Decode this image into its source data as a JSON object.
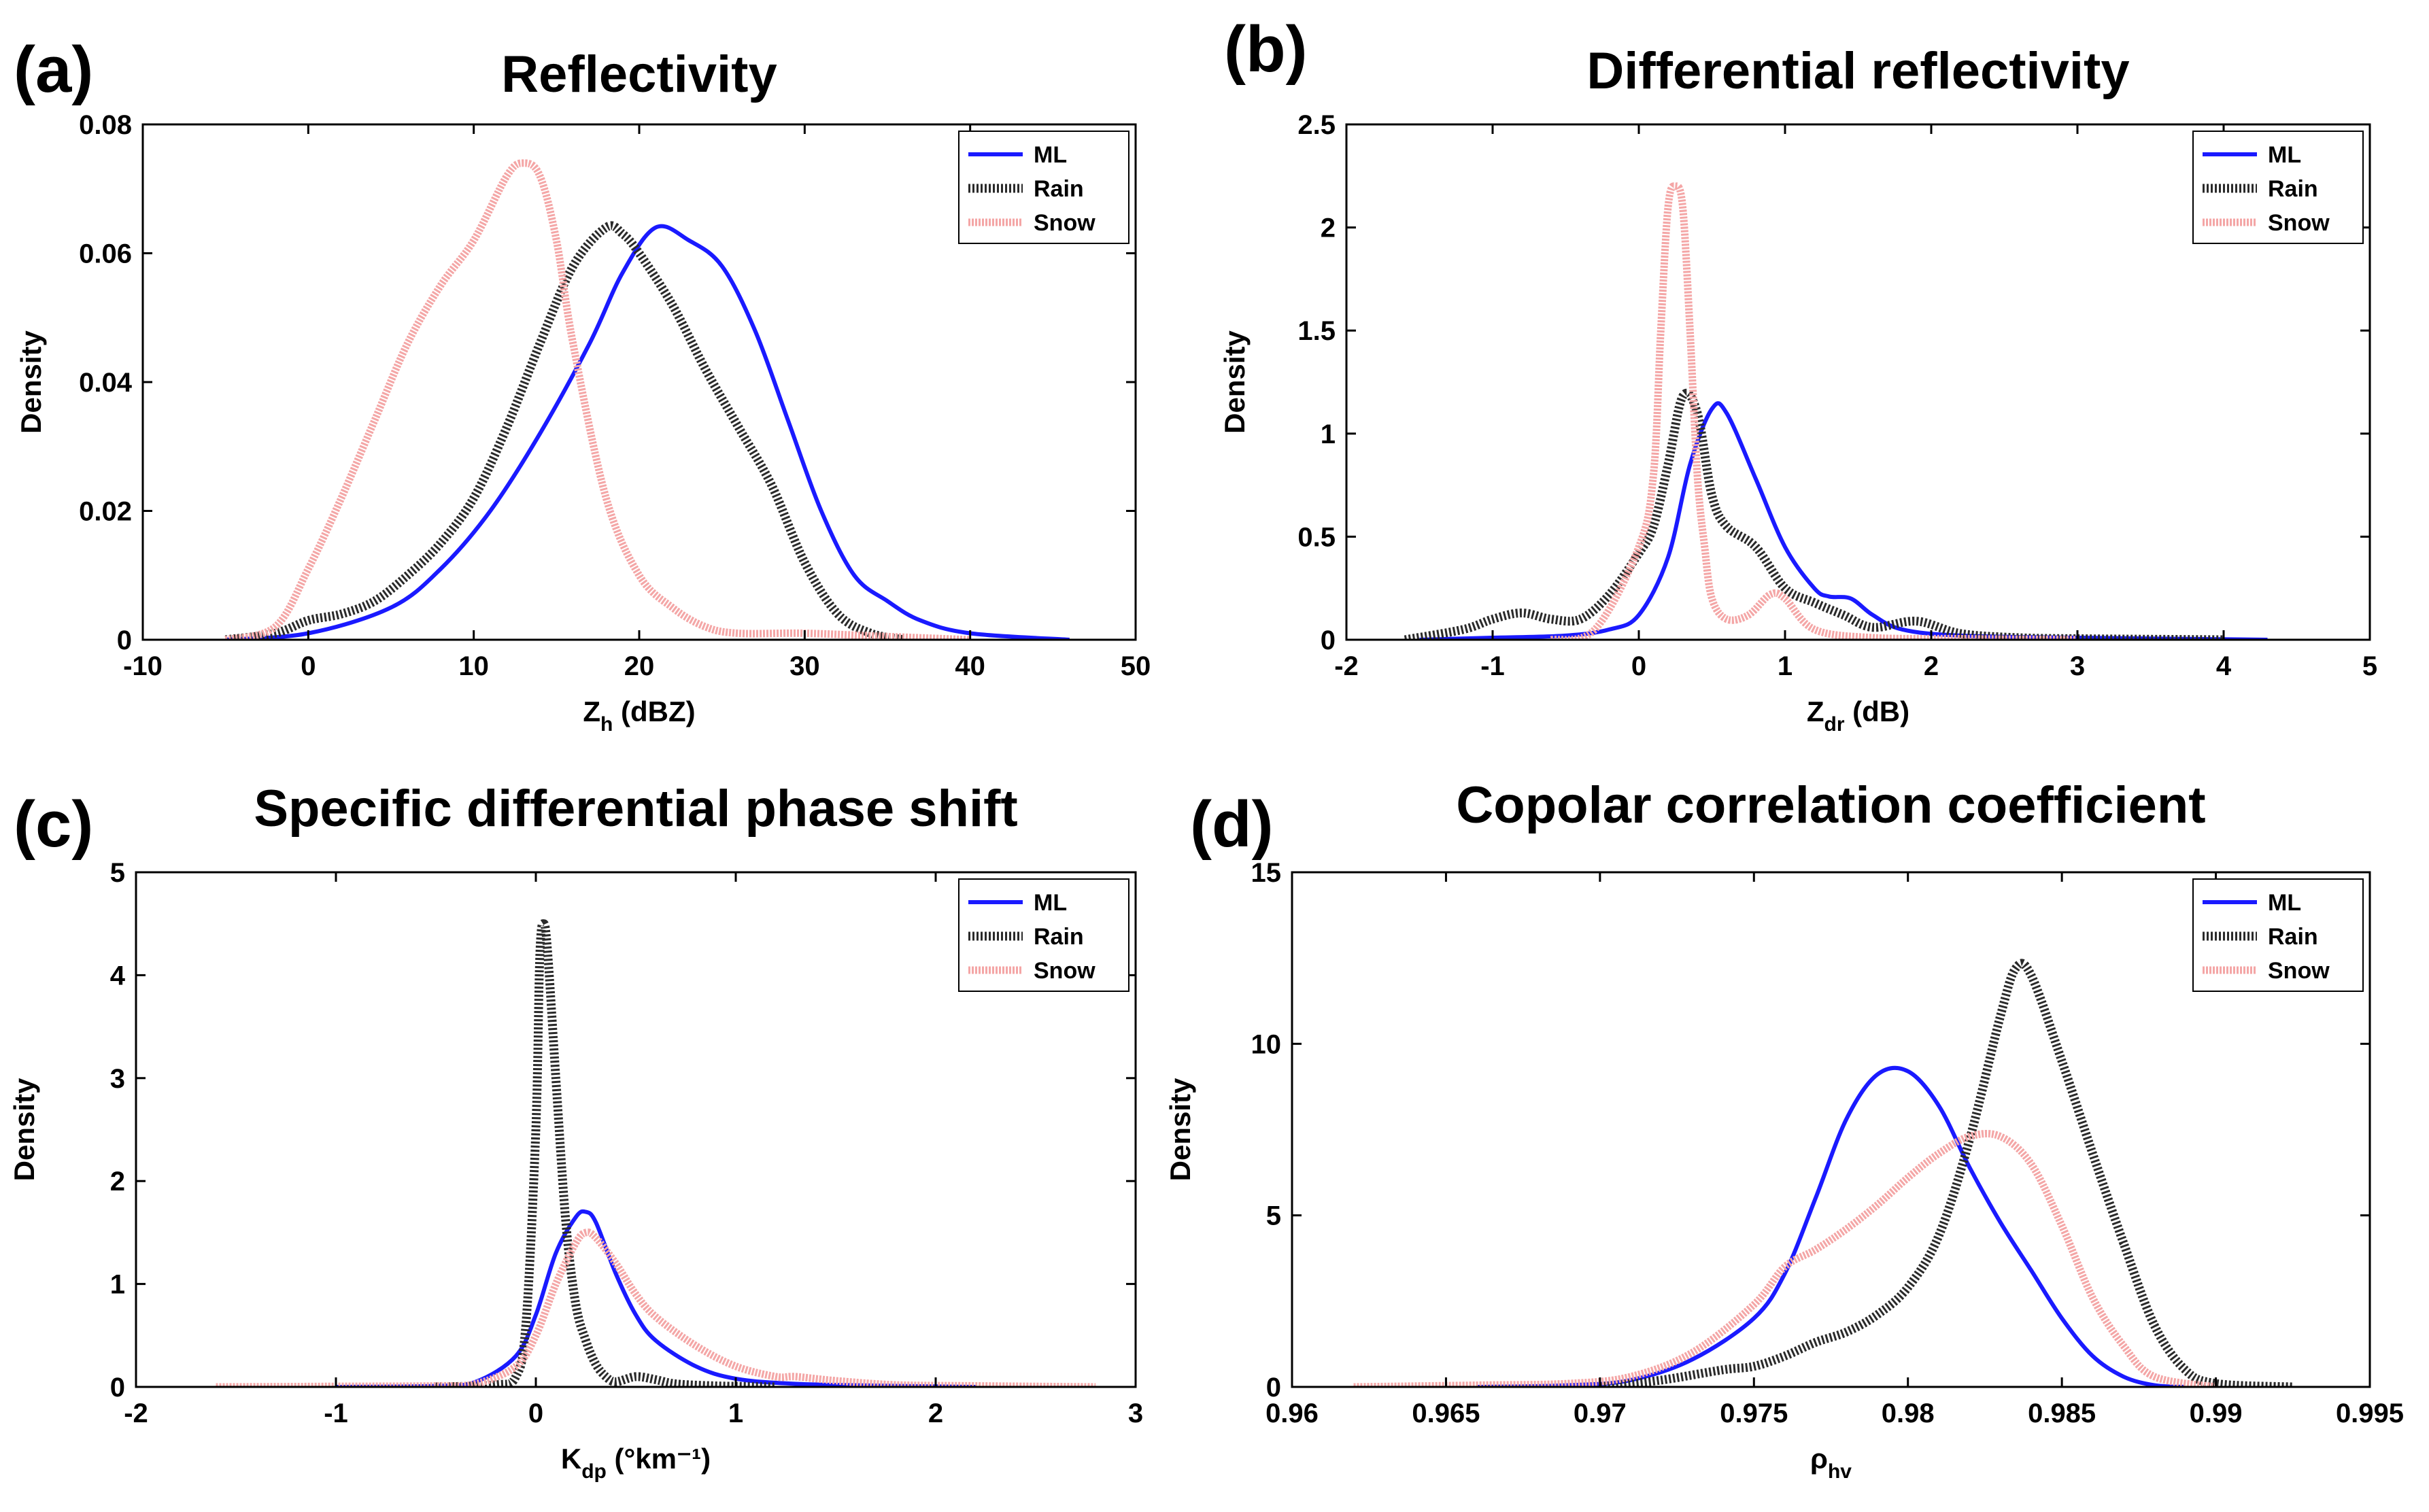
{
  "colors": {
    "ML": "#1a1aff",
    "Rain": "#2a2a2a",
    "Snow": "#f4a6a6",
    "axis": "#000000"
  },
  "chart_data": [
    {
      "type": "line",
      "letter": "(a)",
      "title": "Reflectivity",
      "xlabel": {
        "main": "Z",
        "sub": "h",
        "sup": "",
        "after": " (dBZ)"
      },
      "ylabel": "Density",
      "xlim": [
        -10,
        50
      ],
      "ylim": [
        0,
        0.08
      ],
      "xticks": [
        -10,
        0,
        10,
        20,
        30,
        40,
        50
      ],
      "xtick_labels": [
        "-10",
        "0",
        "10",
        "20",
        "30",
        "40",
        "50"
      ],
      "yticks": [
        0,
        0.02,
        0.04,
        0.06,
        0.08
      ],
      "ytick_labels": [
        "0",
        "0.02",
        "0.04",
        "0.06",
        "0.08"
      ],
      "legend": [
        "ML",
        "Rain",
        "Snow"
      ],
      "series": [
        {
          "name": "ML",
          "x": [
            -5,
            0,
            5,
            8,
            11,
            14,
            17,
            19,
            21,
            23,
            25,
            27,
            29,
            31,
            33,
            35,
            37,
            40,
            46
          ],
          "y": [
            0,
            0.001,
            0.005,
            0.011,
            0.02,
            0.032,
            0.046,
            0.057,
            0.064,
            0.062,
            0.058,
            0.048,
            0.034,
            0.02,
            0.01,
            0.006,
            0.003,
            0.001,
            0
          ]
        },
        {
          "name": "Rain",
          "x": [
            -5,
            -2,
            0,
            2,
            4,
            6,
            8,
            10,
            12,
            14,
            16,
            18,
            19,
            20,
            22,
            24,
            26,
            28,
            30,
            32,
            34,
            36
          ],
          "y": [
            0,
            0.001,
            0.003,
            0.004,
            0.006,
            0.01,
            0.015,
            0.022,
            0.033,
            0.046,
            0.058,
            0.064,
            0.063,
            0.06,
            0.052,
            0.042,
            0.033,
            0.024,
            0.012,
            0.004,
            0.001,
            0
          ]
        },
        {
          "name": "Snow",
          "x": [
            -5,
            -2,
            0,
            2,
            4,
            6,
            8,
            10,
            12,
            13,
            14,
            15,
            16,
            18,
            20,
            22,
            24,
            26,
            30,
            35,
            40
          ],
          "y": [
            0,
            0.002,
            0.011,
            0.022,
            0.034,
            0.046,
            0.055,
            0.062,
            0.072,
            0.074,
            0.072,
            0.062,
            0.046,
            0.022,
            0.01,
            0.005,
            0.002,
            0.001,
            0.001,
            0.0005,
            0
          ]
        }
      ]
    },
    {
      "type": "line",
      "letter": "(b)",
      "title": "Differential reflectivity",
      "xlabel": {
        "main": "Z",
        "sub": "dr",
        "sup": "",
        "after": " (dB)"
      },
      "ylabel": "Density",
      "xlim": [
        -2,
        5
      ],
      "ylim": [
        0,
        2.5
      ],
      "xticks": [
        -2,
        -1,
        0,
        1,
        2,
        3,
        4,
        5
      ],
      "xtick_labels": [
        "-2",
        "-1",
        "0",
        "1",
        "2",
        "3",
        "4",
        "5"
      ],
      "yticks": [
        0,
        0.5,
        1,
        1.5,
        2,
        2.5
      ],
      "ytick_labels": [
        "0",
        "0.5",
        "1",
        "1.5",
        "2",
        "2.5"
      ],
      "legend": [
        "ML",
        "Rain",
        "Snow"
      ],
      "series": [
        {
          "name": "ML",
          "x": [
            -1.5,
            -1,
            -0.5,
            -0.2,
            0,
            0.2,
            0.35,
            0.5,
            0.6,
            0.8,
            1.0,
            1.2,
            1.3,
            1.45,
            1.6,
            1.8,
            2.2,
            3,
            4.3
          ],
          "y": [
            0,
            0.01,
            0.02,
            0.05,
            0.12,
            0.4,
            0.85,
            1.12,
            1.1,
            0.78,
            0.45,
            0.25,
            0.21,
            0.2,
            0.12,
            0.05,
            0.02,
            0.01,
            0
          ]
        },
        {
          "name": "Rain",
          "x": [
            -1.6,
            -1.2,
            -1,
            -0.8,
            -0.6,
            -0.4,
            -0.2,
            0,
            0.1,
            0.2,
            0.3,
            0.4,
            0.5,
            0.6,
            0.8,
            1.0,
            1.2,
            1.4,
            1.6,
            1.9,
            2.2,
            2.6,
            3,
            4
          ],
          "y": [
            0,
            0.05,
            0.1,
            0.13,
            0.1,
            0.1,
            0.22,
            0.42,
            0.55,
            0.85,
            1.18,
            1.1,
            0.7,
            0.55,
            0.45,
            0.25,
            0.18,
            0.12,
            0.06,
            0.09,
            0.03,
            0.01,
            0.005,
            0
          ]
        },
        {
          "name": "Snow",
          "x": [
            -0.6,
            -0.3,
            0,
            0.1,
            0.15,
            0.2,
            0.25,
            0.3,
            0.35,
            0.4,
            0.45,
            0.5,
            0.6,
            0.75,
            0.9,
            1.0,
            1.2,
            1.6,
            2.2,
            3
          ],
          "y": [
            0,
            0.05,
            0.45,
            0.8,
            1.5,
            2.1,
            2.2,
            2.1,
            1.5,
            0.8,
            0.45,
            0.2,
            0.1,
            0.12,
            0.22,
            0.2,
            0.05,
            0.01,
            0.005,
            0
          ]
        }
      ]
    },
    {
      "type": "line",
      "letter": "(c)",
      "title": "Specific differential phase shift",
      "xlabel": {
        "main": "K",
        "sub": "dp",
        "sup": "",
        "after": " (°km⁻¹)"
      },
      "ylabel": "Density",
      "xlim": [
        -2,
        3
      ],
      "ylim": [
        0,
        5
      ],
      "xticks": [
        -2,
        -1,
        0,
        1,
        2,
        3
      ],
      "xtick_labels": [
        "-2",
        "-1",
        "0",
        "1",
        "2",
        "3"
      ],
      "yticks": [
        0,
        1,
        2,
        3,
        4,
        5
      ],
      "ytick_labels": [
        "0",
        "1",
        "2",
        "3",
        "4",
        "5"
      ],
      "legend": [
        "ML",
        "Rain",
        "Snow"
      ],
      "series": [
        {
          "name": "ML",
          "x": [
            -1,
            -0.5,
            -0.3,
            -0.1,
            0,
            0.1,
            0.2,
            0.25,
            0.3,
            0.4,
            0.5,
            0.6,
            0.8,
            1.0,
            1.3,
            1.8,
            2.2
          ],
          "y": [
            0,
            0.01,
            0.05,
            0.3,
            0.7,
            1.3,
            1.65,
            1.7,
            1.6,
            1.1,
            0.7,
            0.45,
            0.2,
            0.08,
            0.03,
            0.01,
            0
          ]
        },
        {
          "name": "Rain",
          "x": [
            -0.5,
            -0.2,
            -0.1,
            -0.05,
            0,
            0.02,
            0.04,
            0.06,
            0.1,
            0.15,
            0.2,
            0.25,
            0.3,
            0.35,
            0.4,
            0.5,
            0.6,
            0.7,
            0.9,
            1.2
          ],
          "y": [
            0,
            0.02,
            0.1,
            0.6,
            2.5,
            4.2,
            4.5,
            4.2,
            3.0,
            1.6,
            0.8,
            0.45,
            0.22,
            0.1,
            0.05,
            0.1,
            0.07,
            0.03,
            0.01,
            0
          ]
        },
        {
          "name": "Snow",
          "x": [
            -1.6,
            -1,
            -0.5,
            -0.3,
            -0.1,
            0,
            0.1,
            0.2,
            0.25,
            0.3,
            0.4,
            0.5,
            0.6,
            0.8,
            1.0,
            1.2,
            1.3,
            1.5,
            1.8,
            2.2,
            2.8
          ],
          "y": [
            0,
            0.005,
            0.01,
            0.03,
            0.2,
            0.5,
            1.0,
            1.4,
            1.5,
            1.45,
            1.2,
            0.9,
            0.68,
            0.4,
            0.2,
            0.1,
            0.1,
            0.06,
            0.02,
            0.01,
            0
          ]
        }
      ]
    },
    {
      "type": "line",
      "letter": "(d)",
      "title": "Copolar correlation coefficient",
      "xlabel": {
        "main": "ρ",
        "sub": "hv",
        "sup": "",
        "after": ""
      },
      "ylabel": "Density",
      "xlim": [
        0.96,
        0.995
      ],
      "ylim": [
        0,
        15
      ],
      "xticks": [
        0.96,
        0.965,
        0.97,
        0.975,
        0.98,
        0.985,
        0.99,
        0.995
      ],
      "xtick_labels": [
        "0.96",
        "0.965",
        "0.97",
        "0.975",
        "0.98",
        "0.985",
        "0.99",
        "0.995"
      ],
      "yticks": [
        0,
        5,
        10,
        15
      ],
      "ytick_labels": [
        "0",
        "5",
        "10",
        "15"
      ],
      "legend": [
        "ML",
        "Rain",
        "Snow"
      ],
      "series": [
        {
          "name": "ML",
          "x": [
            0.966,
            0.969,
            0.971,
            0.973,
            0.975,
            0.976,
            0.977,
            0.978,
            0.979,
            0.98,
            0.981,
            0.982,
            0.983,
            0.984,
            0.985,
            0.986,
            0.987,
            0.988,
            0.989
          ],
          "y": [
            0,
            0.05,
            0.2,
            0.8,
            2.0,
            3.3,
            5.5,
            7.8,
            9.1,
            9.2,
            8.2,
            6.4,
            4.8,
            3.4,
            2.0,
            0.9,
            0.3,
            0.05,
            0
          ]
        },
        {
          "name": "Rain",
          "x": [
            0.97,
            0.972,
            0.974,
            0.975,
            0.976,
            0.977,
            0.978,
            0.979,
            0.98,
            0.981,
            0.982,
            0.983,
            0.9835,
            0.984,
            0.985,
            0.986,
            0.987,
            0.988,
            0.989,
            0.99,
            0.9925
          ],
          "y": [
            0,
            0.2,
            0.5,
            0.6,
            0.9,
            1.3,
            1.6,
            2.1,
            2.9,
            4.4,
            7.2,
            10.8,
            12.2,
            12.0,
            9.5,
            6.8,
            4.2,
            1.8,
            0.5,
            0.1,
            0
          ]
        },
        {
          "name": "Snow",
          "x": [
            0.962,
            0.966,
            0.969,
            0.971,
            0.973,
            0.975,
            0.976,
            0.977,
            0.978,
            0.979,
            0.98,
            0.981,
            0.982,
            0.983,
            0.984,
            0.985,
            0.986,
            0.987,
            0.988,
            0.99
          ],
          "y": [
            0,
            0.05,
            0.1,
            0.3,
            1.0,
            2.4,
            3.5,
            4.0,
            4.6,
            5.3,
            6.1,
            6.8,
            7.3,
            7.3,
            6.5,
            4.7,
            2.6,
            1.2,
            0.3,
            0
          ]
        }
      ]
    }
  ]
}
